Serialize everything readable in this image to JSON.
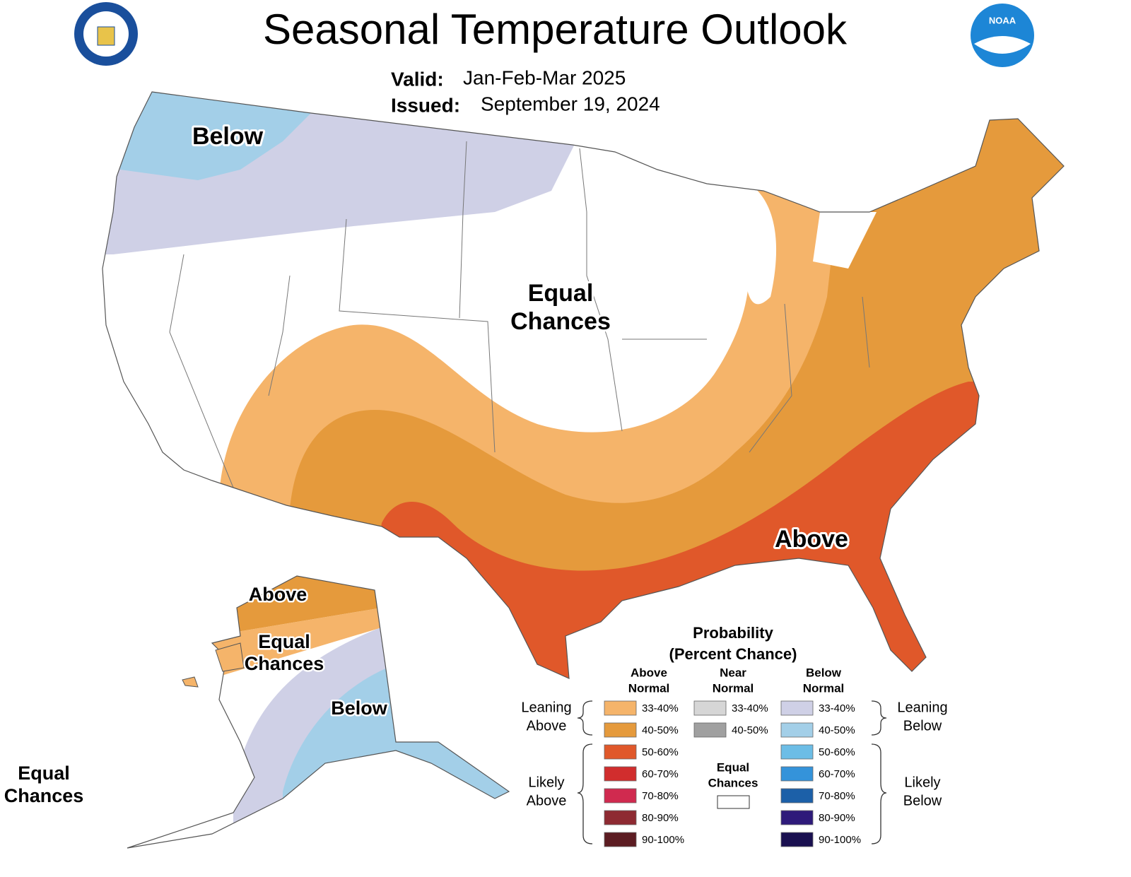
{
  "header": {
    "title": "Seasonal Temperature Outlook",
    "valid_label": "Valid:",
    "valid": "Jan-Feb-Mar 2025",
    "issued_label": "Issued:",
    "issued": "September 19, 2024"
  },
  "logos": {
    "noaa": "NOAA"
  },
  "map_labels": {
    "conus_below": [
      "Below"
    ],
    "conus_equal": [
      "Equal",
      "Chances"
    ],
    "conus_above": [
      "Above"
    ],
    "alaska_above": [
      "Above"
    ],
    "alaska_equal": [
      "Equal",
      "Chances"
    ],
    "alaska_below": [
      "Below"
    ],
    "aleutian_equal": [
      "Equal",
      "Chances"
    ]
  },
  "legend": {
    "title": [
      "Probability",
      "(Percent Chance)"
    ],
    "columns": [
      {
        "heading": [
          "Above",
          "Normal"
        ],
        "items": [
          {
            "label": "33-40%",
            "color": "#f5b46a"
          },
          {
            "label": "40-50%",
            "color": "#e59a3c"
          },
          {
            "label": "50-60%",
            "color": "#e0582a"
          },
          {
            "label": "60-70%",
            "color": "#d12d2d"
          },
          {
            "label": "70-80%",
            "color": "#d02a4f"
          },
          {
            "label": "80-90%",
            "color": "#8e2a32"
          },
          {
            "label": "90-100%",
            "color": "#5c1c22"
          }
        ]
      },
      {
        "heading": [
          "Near",
          "Normal"
        ],
        "items": [
          {
            "label": "33-40%",
            "color": "#d6d6d6"
          },
          {
            "label": "40-50%",
            "color": "#a0a0a0"
          }
        ]
      },
      {
        "heading": [
          "Below",
          "Normal"
        ],
        "items": [
          {
            "label": "33-40%",
            "color": "#cfd0e6"
          },
          {
            "label": "40-50%",
            "color": "#a3cfe8"
          },
          {
            "label": "50-60%",
            "color": "#6cbde6"
          },
          {
            "label": "60-70%",
            "color": "#3493da"
          },
          {
            "label": "70-80%",
            "color": "#1c60a8"
          },
          {
            "label": "80-90%",
            "color": "#2e1a7a"
          },
          {
            "label": "90-100%",
            "color": "#1a1050"
          }
        ]
      }
    ],
    "equal_chances": [
      "Equal",
      "Chances"
    ],
    "side_labels": {
      "leaning_above": [
        "Leaning",
        "Above"
      ],
      "likely_above": [
        "Likely",
        "Above"
      ],
      "leaning_below": [
        "Leaning",
        "Below"
      ],
      "likely_below": [
        "Likely",
        "Below"
      ]
    }
  }
}
